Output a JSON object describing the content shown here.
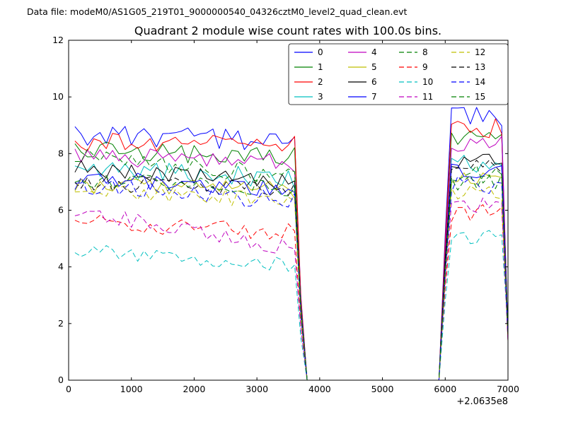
{
  "header": {
    "data_file_label": "Data file: modeM0/AS1G05_219T01_9000000540_04326cztM0_level2_quad_clean.evt"
  },
  "chart_data": {
    "type": "line",
    "title": "Quadrant 2 module wise count rates with 100.0s bins.",
    "xlabel": "",
    "ylabel": "",
    "x_offset_label": "+2.0635e8",
    "xlim": [
      0,
      7000
    ],
    "ylim": [
      0,
      12
    ],
    "x_ticks": [
      0,
      1000,
      2000,
      3000,
      4000,
      5000,
      6000,
      7000
    ],
    "y_ticks": [
      0,
      2,
      4,
      6,
      8,
      10,
      12
    ],
    "grid": false,
    "bin_seconds": 100.0,
    "legend": {
      "position": "upper right inside axes",
      "columns": 4,
      "labels": [
        "0",
        "1",
        "2",
        "3",
        "4",
        "5",
        "6",
        "7",
        "8",
        "9",
        "10",
        "11",
        "12",
        "13",
        "14",
        "15"
      ]
    },
    "profile": {
      "note": "All 16 module count-rate curves are noisy around level1 for x=100..3600, drop to 0 for x=3800..5900 (data gap), rise to noisy level2 for x=6100..6900, and fall to ~1.6 at x=7000. X values are offset by +2.0635e8 seconds.",
      "x_start": 100,
      "x_step": 100,
      "seg1_end_x": 3600,
      "drop_mid_x": 3700,
      "zero_start_x": 3800,
      "zero_end_x": 5900,
      "rise_mid_x": 6000,
      "seg2_start_x": 6100,
      "seg2_end_x": 6900,
      "end_x": 7000,
      "end_value": 1.6
    },
    "series": [
      {
        "name": "0",
        "color": "#0000ff",
        "dash": false,
        "level1": 8.55,
        "level2": 9.35,
        "trend1": -0.2,
        "noise": 0.38,
        "seed": 1
      },
      {
        "name": "1",
        "color": "#008000",
        "dash": false,
        "level1": 8.0,
        "level2": 8.6,
        "trend1": -0.25,
        "noise": 0.38,
        "seed": 2
      },
      {
        "name": "2",
        "color": "#ff0000",
        "dash": false,
        "level1": 8.35,
        "level2": 8.9,
        "trend1": -0.1,
        "noise": 0.35,
        "seed": 3
      },
      {
        "name": "3",
        "color": "#00bfbf",
        "dash": false,
        "level1": 7.3,
        "level2": 7.6,
        "trend1": -0.4,
        "noise": 0.35,
        "seed": 4
      },
      {
        "name": "4",
        "color": "#bf00bf",
        "dash": false,
        "level1": 7.8,
        "level2": 8.3,
        "trend1": -0.3,
        "noise": 0.35,
        "seed": 5
      },
      {
        "name": "5",
        "color": "#bfbf00",
        "dash": false,
        "level1": 6.8,
        "level2": 7.2,
        "trend1": -0.2,
        "noise": 0.3,
        "seed": 6
      },
      {
        "name": "6",
        "color": "#000000",
        "dash": false,
        "level1": 7.25,
        "level2": 7.8,
        "trend1": -0.5,
        "noise": 0.3,
        "seed": 7
      },
      {
        "name": "7",
        "color": "#0000ff",
        "dash": false,
        "level1": 6.95,
        "level2": 7.4,
        "trend1": -0.4,
        "noise": 0.3,
        "seed": 8
      },
      {
        "name": "8",
        "color": "#008000",
        "dash": true,
        "level1": 7.55,
        "level2": 7.3,
        "trend1": -0.6,
        "noise": 0.35,
        "seed": 9
      },
      {
        "name": "9",
        "color": "#ff0000",
        "dash": true,
        "level1": 5.4,
        "level2": 5.9,
        "trend1": -0.35,
        "noise": 0.3,
        "seed": 10
      },
      {
        "name": "10",
        "color": "#00bfbf",
        "dash": true,
        "level1": 4.3,
        "level2": 5.1,
        "trend1": -0.5,
        "noise": 0.28,
        "seed": 11
      },
      {
        "name": "11",
        "color": "#bf00bf",
        "dash": true,
        "level1": 5.3,
        "level2": 6.2,
        "trend1": -1.3,
        "noise": 0.3,
        "seed": 12
      },
      {
        "name": "12",
        "color": "#bfbf00",
        "dash": true,
        "level1": 6.5,
        "level2": 6.6,
        "trend1": -0.3,
        "noise": 0.3,
        "seed": 13
      },
      {
        "name": "13",
        "color": "#000000",
        "dash": true,
        "level1": 6.85,
        "level2": 7.5,
        "trend1": -0.3,
        "noise": 0.3,
        "seed": 14
      },
      {
        "name": "14",
        "color": "#0000ff",
        "dash": true,
        "level1": 6.6,
        "level2": 6.9,
        "trend1": -0.5,
        "noise": 0.33,
        "seed": 15
      },
      {
        "name": "15",
        "color": "#008000",
        "dash": true,
        "level1": 6.9,
        "level2": 7.0,
        "trend1": -0.35,
        "noise": 0.3,
        "seed": 16
      }
    ]
  }
}
